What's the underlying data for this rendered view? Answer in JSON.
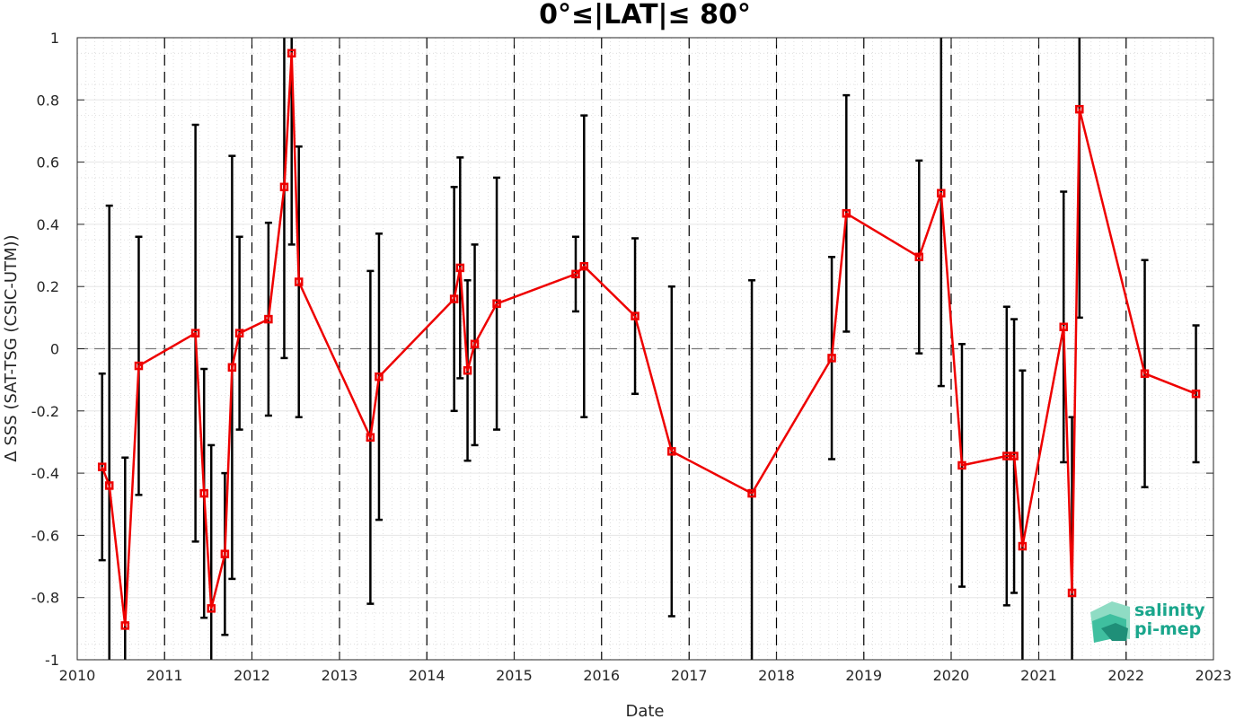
{
  "chart_data": {
    "type": "scatter",
    "title": "0°≤|LAT|≤ 80°",
    "xlabel": "Date",
    "ylabel": "Δ SSS (SAT-TSG (CSIC-UTM))",
    "xlim": [
      "2010-01-01",
      "2023-01-01"
    ],
    "ylim": [
      -1,
      1
    ],
    "x_tick_labels": [
      "2010",
      "2011",
      "2012",
      "2013",
      "2014",
      "2015",
      "2016",
      "2017",
      "2018",
      "2019",
      "2020",
      "2021",
      "2022",
      "2023"
    ],
    "y_tick_labels": [
      "1",
      "0.8",
      "0.6",
      "0.4",
      "0.2",
      "0",
      "-0.2",
      "-0.4",
      "-0.6",
      "-0.8",
      "-1"
    ],
    "y_ticks": [
      1,
      0.8,
      0.6,
      0.4,
      0.2,
      0,
      -0.2,
      -0.4,
      -0.6,
      -0.8,
      -1
    ],
    "grid": true,
    "reference_line": 0,
    "year_boundaries_dashed": true,
    "colors": {
      "series": "#ee0000",
      "error_bars": "#000000"
    },
    "series": [
      {
        "points": [
          {
            "x": "2010-04-15",
            "y": -0.38,
            "low": -0.68,
            "high": -0.08
          },
          {
            "x": "2010-05-15",
            "y": -0.44,
            "low": -1.35,
            "high": 0.46
          },
          {
            "x": "2010-07-20",
            "y": -0.89,
            "low": -1.45,
            "high": -0.35
          },
          {
            "x": "2010-09-15",
            "y": -0.055,
            "low": -0.47,
            "high": 0.36
          },
          {
            "x": "2011-05-10",
            "y": 0.05,
            "low": -0.62,
            "high": 0.72
          },
          {
            "x": "2011-06-15",
            "y": -0.465,
            "low": -0.865,
            "high": -0.065
          },
          {
            "x": "2011-07-15",
            "y": -0.835,
            "low": -1.36,
            "high": -0.31
          },
          {
            "x": "2011-09-10",
            "y": -0.66,
            "low": -0.92,
            "high": -0.4
          },
          {
            "x": "2011-10-10",
            "y": -0.06,
            "low": -0.74,
            "high": 0.62
          },
          {
            "x": "2011-11-10",
            "y": 0.05,
            "low": -0.26,
            "high": 0.36
          },
          {
            "x": "2012-03-10",
            "y": 0.095,
            "low": -0.215,
            "high": 0.405
          },
          {
            "x": "2012-05-15",
            "y": 0.52,
            "low": -0.03,
            "high": 1.07
          },
          {
            "x": "2012-06-15",
            "y": 0.95,
            "low": 0.335,
            "high": 1.565
          },
          {
            "x": "2012-07-15",
            "y": 0.215,
            "low": -0.22,
            "high": 0.65
          },
          {
            "x": "2013-05-10",
            "y": -0.285,
            "low": -0.82,
            "high": 0.25
          },
          {
            "x": "2013-06-15",
            "y": -0.09,
            "low": -0.55,
            "high": 0.37
          },
          {
            "x": "2014-04-25",
            "y": 0.16,
            "low": -0.2,
            "high": 0.52
          },
          {
            "x": "2014-05-20",
            "y": 0.26,
            "low": -0.095,
            "high": 0.615
          },
          {
            "x": "2014-06-20",
            "y": -0.07,
            "low": -0.36,
            "high": 0.22
          },
          {
            "x": "2014-07-20",
            "y": 0.015,
            "low": -0.31,
            "high": 0.335
          },
          {
            "x": "2014-10-20",
            "y": 0.145,
            "low": -0.26,
            "high": 0.55
          },
          {
            "x": "2015-09-15",
            "y": 0.24,
            "low": 0.12,
            "high": 0.36
          },
          {
            "x": "2015-10-20",
            "y": 0.265,
            "low": -0.22,
            "high": 0.75
          },
          {
            "x": "2016-05-20",
            "y": 0.105,
            "low": -0.145,
            "high": 0.355
          },
          {
            "x": "2016-10-20",
            "y": -0.33,
            "low": -0.86,
            "high": 0.2
          },
          {
            "x": "2017-09-20",
            "y": -0.465,
            "low": -1.15,
            "high": 0.22
          },
          {
            "x": "2018-08-20",
            "y": -0.03,
            "low": -0.355,
            "high": 0.295
          },
          {
            "x": "2018-10-20",
            "y": 0.435,
            "low": 0.055,
            "high": 0.815
          },
          {
            "x": "2019-08-20",
            "y": 0.295,
            "low": -0.015,
            "high": 0.605
          },
          {
            "x": "2019-11-20",
            "y": 0.5,
            "low": -0.12,
            "high": 1.12
          },
          {
            "x": "2020-02-15",
            "y": -0.375,
            "low": -0.765,
            "high": 0.015
          },
          {
            "x": "2020-08-20",
            "y": -0.345,
            "low": -0.825,
            "high": 0.135
          },
          {
            "x": "2020-09-20",
            "y": -0.345,
            "low": -0.785,
            "high": 0.095
          },
          {
            "x": "2020-10-25",
            "y": -0.635,
            "low": -1.2,
            "high": -0.07
          },
          {
            "x": "2021-04-15",
            "y": 0.07,
            "low": -0.365,
            "high": 0.505
          },
          {
            "x": "2021-05-20",
            "y": -0.785,
            "low": -1.35,
            "high": -0.22
          },
          {
            "x": "2021-06-20",
            "y": 0.77,
            "low": 0.1,
            "high": 1.44
          },
          {
            "x": "2022-03-20",
            "y": -0.08,
            "low": -0.445,
            "high": 0.285
          },
          {
            "x": "2022-10-20",
            "y": -0.145,
            "low": -0.365,
            "high": 0.075
          }
        ]
      }
    ]
  },
  "logo": {
    "line1": "salinity",
    "line2": "pi-mep",
    "colors": {
      "text": "#1aa68c",
      "light": "#8fdcc4",
      "mid": "#3fbf9f",
      "dark": "#1f8f78"
    }
  }
}
